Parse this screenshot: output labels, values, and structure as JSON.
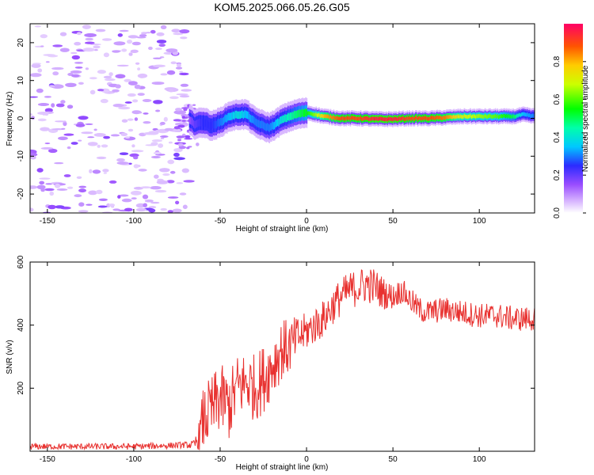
{
  "chart_data": [
    {
      "type": "heatmap",
      "title": "KOM5.2025.066.05.26.G05",
      "xlabel": "Height of straight line (km)",
      "ylabel": "Frequency (Hz)",
      "xlim": [
        -160,
        132
      ],
      "ylim": [
        -25,
        25
      ],
      "xticks": [
        -150,
        -100,
        -50,
        0,
        50,
        100
      ],
      "yticks": [
        -20,
        -10,
        0,
        10,
        20
      ],
      "grid": false,
      "noise_region_km": [
        -160,
        -68
      ],
      "ridge": {
        "x": [
          -68,
          -65,
          -60,
          -55,
          -50,
          -45,
          -40,
          -35,
          -30,
          -25,
          -22,
          -18,
          -15,
          -10,
          -5,
          0,
          5,
          10,
          20,
          30,
          40,
          50,
          60,
          70,
          80,
          90,
          100,
          110,
          120,
          125,
          132
        ],
        "y": [
          -0.5,
          -1.5,
          -1.0,
          -2.0,
          -1.0,
          0.5,
          1.0,
          1.0,
          -1.0,
          -2.0,
          -2.5,
          -1.5,
          -0.5,
          0.5,
          1.2,
          1.5,
          1.0,
          0.5,
          0.0,
          0.0,
          -0.2,
          -0.2,
          0.0,
          0.0,
          0.2,
          0.5,
          0.5,
          0.5,
          0.5,
          1.0,
          0.5
        ],
        "amplitude": [
          0.15,
          0.2,
          0.25,
          0.25,
          0.3,
          0.35,
          0.4,
          0.35,
          0.3,
          0.3,
          0.3,
          0.35,
          0.4,
          0.45,
          0.5,
          0.55,
          0.65,
          0.8,
          0.9,
          0.9,
          0.95,
          0.95,
          0.9,
          0.9,
          0.85,
          0.7,
          0.65,
          0.6,
          0.5,
          0.35,
          0.3
        ]
      }
    },
    {
      "type": "line",
      "xlabel": "Height of straight line (km)",
      "ylabel": "SNR (v/v)",
      "xlim": [
        -160,
        132
      ],
      "ylim": [
        0,
        600
      ],
      "xticks": [
        -150,
        -100,
        -50,
        0,
        50,
        100
      ],
      "yticks": [
        200,
        400,
        600
      ],
      "grid": false,
      "series": [
        {
          "color": "#e8312f",
          "x": [
            -160,
            -140,
            -120,
            -100,
            -80,
            -70,
            -65,
            -62,
            -60,
            -55,
            -50,
            -45,
            -40,
            -35,
            -30,
            -25,
            -20,
            -15,
            -10,
            -5,
            0,
            5,
            10,
            15,
            20,
            25,
            30,
            35,
            40,
            45,
            50,
            55,
            60,
            65,
            70,
            80,
            90,
            100,
            110,
            120,
            132
          ],
          "values": [
            15,
            15,
            15,
            15,
            18,
            20,
            20,
            40,
            100,
            130,
            170,
            140,
            200,
            220,
            200,
            230,
            270,
            320,
            330,
            360,
            380,
            400,
            420,
            460,
            490,
            510,
            520,
            530,
            520,
            500,
            490,
            510,
            480,
            450,
            440,
            450,
            440,
            430,
            430,
            420,
            420
          ],
          "spread": [
            10,
            10,
            10,
            10,
            10,
            10,
            15,
            60,
            100,
            110,
            110,
            110,
            110,
            100,
            110,
            110,
            100,
            100,
            90,
            70,
            60,
            60,
            60,
            60,
            60,
            60,
            60,
            60,
            60,
            50,
            40,
            40,
            40,
            40,
            40,
            40,
            40,
            40,
            40,
            40,
            40
          ]
        }
      ]
    }
  ],
  "colorbar": {
    "label": "Normalized spectral amplitude",
    "range": [
      0,
      1
    ],
    "ticks": [
      "0.0",
      "0.2",
      "0.4",
      "0.6",
      "0.8"
    ]
  }
}
